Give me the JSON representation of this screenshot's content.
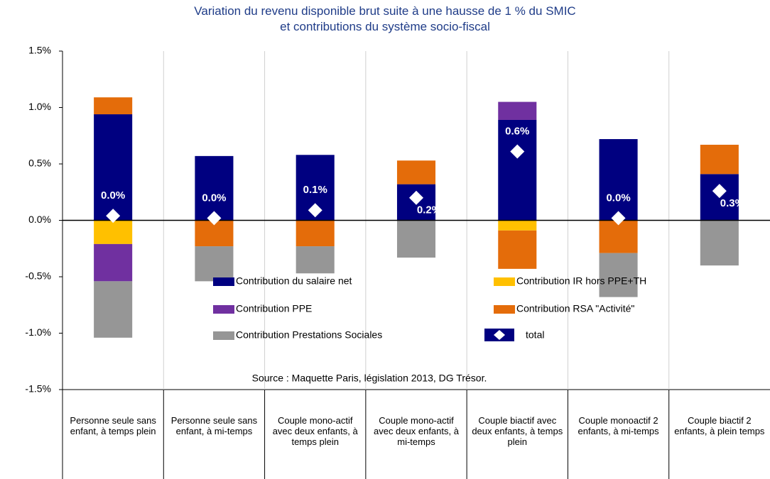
{
  "chart_data": {
    "type": "bar",
    "stacked": true,
    "title": "Variation du revenu disponible brut suite à une hausse de 1 % du SMIC",
    "subtitle": "et contributions du système socio-fiscal",
    "source": "Source : Maquette Paris, législation 2013, DG Trésor.",
    "categories": [
      "Personne seule sans enfant, à temps plein",
      "Personne seule sans enfant, à mi-temps",
      "Couple mono-actif avec deux enfants, à temps plein",
      "Couple mono-actif avec deux enfants, à mi-temps",
      "Couple biactif avec deux enfants, à temps plein",
      "Couple monoactif 2 enfants, à mi-temps",
      "Couple biactif 2 enfants, à plein temps"
    ],
    "series": [
      {
        "name": "Contribution du salaire net",
        "color": "#000080",
        "values": [
          0.94,
          0.57,
          0.58,
          0.32,
          0.89,
          0.72,
          0.41
        ]
      },
      {
        "name": "Contribution IR hors PPE+TH",
        "color": "#ffc000",
        "values": [
          -0.21,
          null,
          null,
          null,
          -0.09,
          null,
          null
        ]
      },
      {
        "name": "Contribution PPE",
        "color": "#7030a0",
        "values": [
          -0.33,
          null,
          null,
          null,
          0.16,
          null,
          null
        ]
      },
      {
        "name": "Contribution RSA \"Activité\"",
        "color": "#e46c0a",
        "values": [
          0.15,
          -0.23,
          -0.23,
          0.21,
          -0.34,
          -0.29,
          0.26
        ]
      },
      {
        "name": "Contribution Prestations Sociales",
        "color": "#969696",
        "values": [
          -0.5,
          -0.31,
          -0.24,
          -0.33,
          null,
          -0.39,
          -0.4
        ]
      }
    ],
    "total": {
      "name": "total",
      "color": "#ffffff",
      "values": [
        0.04,
        0.02,
        0.09,
        0.2,
        0.61,
        0.02,
        0.26
      ],
      "value_labels": [
        "0.0%",
        "0.0%",
        "0.1%",
        "0.2%",
        "0.6%",
        "0.0%",
        "0.3%"
      ]
    },
    "ylim": [
      -1.5,
      1.5
    ],
    "yticks": [
      {
        "value": -1.5,
        "label": "-1.5%"
      },
      {
        "value": -1.0,
        "label": "-1.0%"
      },
      {
        "value": -0.5,
        "label": "-0.5%"
      },
      {
        "value": 0.0,
        "label": "0.0%"
      },
      {
        "value": 0.5,
        "label": "0.5%"
      },
      {
        "value": 1.0,
        "label": "1.0%"
      },
      {
        "value": 1.5,
        "label": "1.5%"
      }
    ]
  }
}
